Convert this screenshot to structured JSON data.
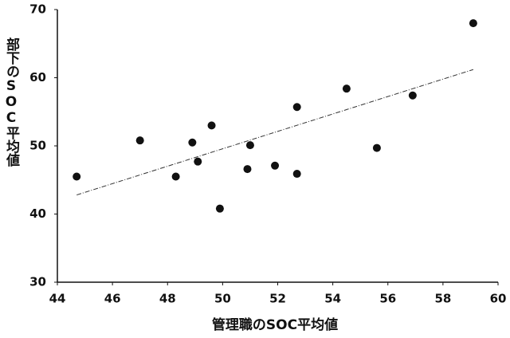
{
  "chart_data": {
    "type": "scatter",
    "x_label": "管理職のSOC平均値",
    "y_label": "部下のSOC平均値",
    "x": [
      44.7,
      47.0,
      48.3,
      48.9,
      49.1,
      49.6,
      49.9,
      50.9,
      51.0,
      51.9,
      52.7,
      52.7,
      54.5,
      55.6,
      56.9,
      59.1
    ],
    "values": [
      45.5,
      50.8,
      45.5,
      50.5,
      47.7,
      53.0,
      40.8,
      46.6,
      50.1,
      47.1,
      55.7,
      45.9,
      58.4,
      49.7,
      57.4,
      68.0
    ],
    "color": "#111111",
    "trendline": {
      "x": [
        44.7,
        59.1
      ],
      "y": [
        42.8,
        61.2
      ],
      "color": "#333333"
    },
    "xlim": [
      44,
      60
    ],
    "xticks": [
      44,
      46,
      48,
      50,
      52,
      54,
      56,
      58,
      60
    ],
    "ylim": [
      30,
      70
    ],
    "yticks": [
      30,
      40,
      50,
      60,
      70
    ],
    "grid": false
  }
}
